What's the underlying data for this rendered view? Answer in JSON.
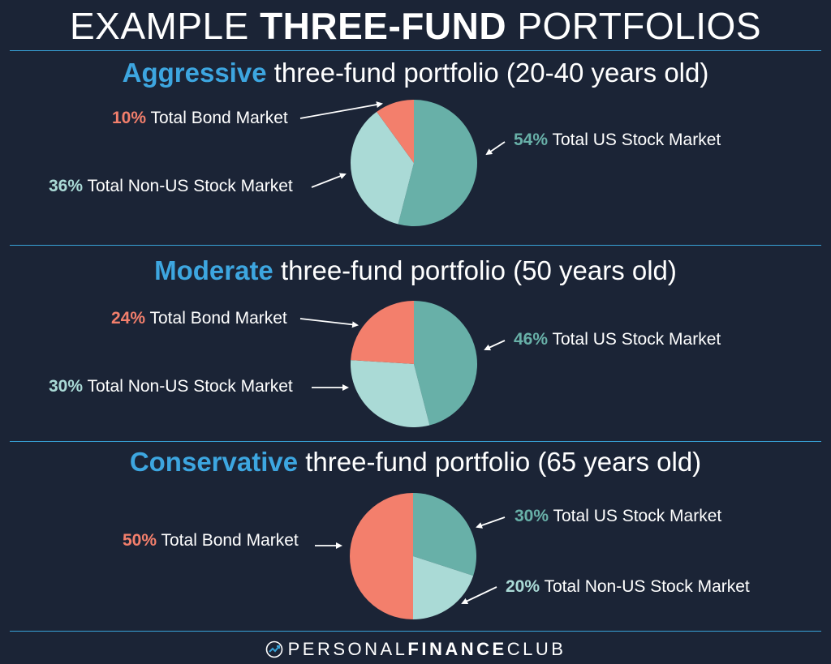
{
  "header": {
    "title_light_1": "EXAMPLE ",
    "title_bold": "THREE-FUND",
    "title_light_2": " PORTFOLIOS"
  },
  "colors": {
    "background": "#1b2436",
    "accent": "#38a3d8",
    "us_stock": "#68b0a8",
    "non_us_stock": "#aadad6",
    "bond": "#f37f6c"
  },
  "chart_data": [
    {
      "type": "pie",
      "title_keyword": "Aggressive",
      "title_rest": " three-fund portfolio (20-40 years old)",
      "slices": [
        {
          "pct": "54%",
          "label": "Total US Stock Market",
          "value": 54,
          "color": "#68b0a8"
        },
        {
          "pct": "36%",
          "label": "Total Non-US Stock Market",
          "value": 36,
          "color": "#aadad6"
        },
        {
          "pct": "10%",
          "label": "Total Bond Market",
          "value": 10,
          "color": "#f37f6c"
        }
      ]
    },
    {
      "type": "pie",
      "title_keyword": "Moderate",
      "title_rest": " three-fund portfolio (50 years old)",
      "slices": [
        {
          "pct": "46%",
          "label": "Total US Stock Market",
          "value": 46,
          "color": "#68b0a8"
        },
        {
          "pct": "30%",
          "label": "Total Non-US Stock Market",
          "value": 30,
          "color": "#aadad6"
        },
        {
          "pct": "24%",
          "label": "Total Bond Market",
          "value": 24,
          "color": "#f37f6c"
        }
      ]
    },
    {
      "type": "pie",
      "title_keyword": "Conservative",
      "title_rest": " three-fund portfolio (65 years old)",
      "slices": [
        {
          "pct": "30%",
          "label": "Total US Stock Market",
          "value": 30,
          "color": "#68b0a8"
        },
        {
          "pct": "20%",
          "label": "Total Non-US Stock Market",
          "value": 20,
          "color": "#aadad6"
        },
        {
          "pct": "50%",
          "label": "Total Bond Market",
          "value": 50,
          "color": "#f37f6c"
        }
      ]
    }
  ],
  "footer": {
    "brand_light": "PERSONAL",
    "brand_bold": "FINANCE",
    "brand_light_2": "CLUB",
    "logo_icon": "trend-arrow-circle-icon"
  }
}
